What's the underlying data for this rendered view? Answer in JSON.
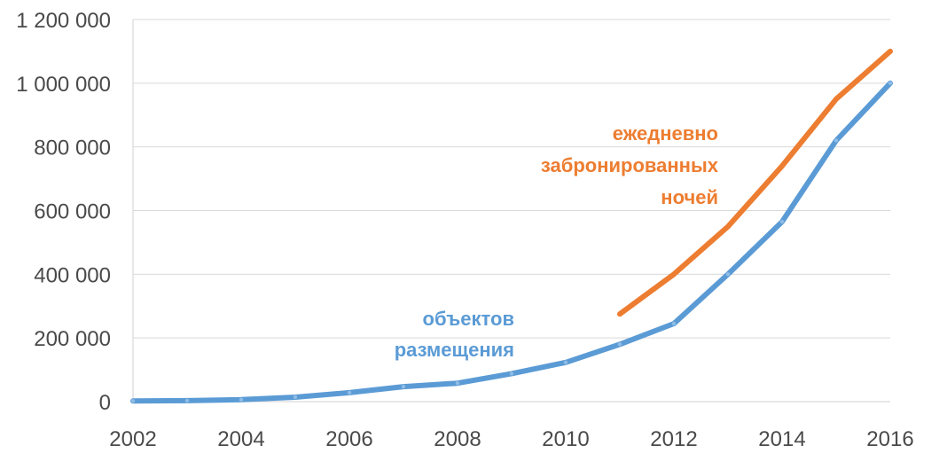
{
  "chart_data": {
    "type": "line",
    "title": "",
    "xlabel": "",
    "ylabel": "",
    "x": [
      2002,
      2003,
      2004,
      2005,
      2006,
      2007,
      2008,
      2009,
      2010,
      2011,
      2012,
      2013,
      2014,
      2015,
      2016
    ],
    "x_tick_labels": [
      "2002",
      "2004",
      "2006",
      "2008",
      "2010",
      "2012",
      "2014",
      "2016"
    ],
    "x_ticks": [
      2002,
      2004,
      2006,
      2008,
      2010,
      2012,
      2014,
      2016
    ],
    "xlim": [
      2002,
      2016
    ],
    "y_tick_labels": [
      "0",
      "200 000",
      "400 000",
      "600 000",
      "800 000",
      "1 000 000",
      "1 200 000"
    ],
    "y_ticks": [
      0,
      200000,
      400000,
      600000,
      800000,
      1000000,
      1200000
    ],
    "ylim": [
      0,
      1200000
    ],
    "grid": true,
    "series": [
      {
        "name": "объектов размещения",
        "label_lines": [
          "объектов",
          "размещения"
        ],
        "color": "#5b9bd5",
        "values": [
          2000,
          3000,
          6000,
          14000,
          28000,
          47000,
          58000,
          88000,
          123000,
          180000,
          245000,
          400000,
          565000,
          820000,
          1000000
        ]
      },
      {
        "name": "ежедневно забронированных ночей",
        "label_lines": [
          "ежедневно",
          "забронированных",
          "ночей"
        ],
        "color": "#ed7d31",
        "values": [
          null,
          null,
          null,
          null,
          null,
          null,
          null,
          null,
          null,
          275000,
          400000,
          550000,
          740000,
          950000,
          1100000
        ]
      }
    ]
  }
}
